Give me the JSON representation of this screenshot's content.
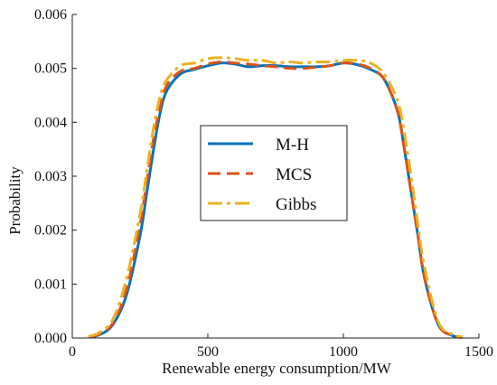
{
  "colors": {
    "mh": "#0072BD",
    "mcs": "#D95319",
    "gibbs": "#EDB120",
    "axis": "#222222",
    "background": "#ffffff"
  },
  "chart_data": {
    "type": "line",
    "title": "",
    "xlabel": "Renewable energy consumption/MW",
    "ylabel": "Probability",
    "xlim": [
      0,
      1500
    ],
    "ylim": [
      0,
      0.006
    ],
    "xticks": [
      0,
      500,
      1000,
      1500
    ],
    "xtick_labels": [
      "0",
      "500",
      "1000",
      "1500"
    ],
    "yticks": [
      0,
      0.001,
      0.002,
      0.003,
      0.004,
      0.005,
      0.006
    ],
    "ytick_labels": [
      "0.000",
      "0.001",
      "0.002",
      "0.003",
      "0.004",
      "0.005",
      "0.006"
    ],
    "grid": false,
    "legend_position": "center",
    "series": [
      {
        "name": "M-H",
        "style": "solid",
        "color": "#0072BD",
        "x": [
          60,
          100,
          150,
          200,
          250,
          275,
          300,
          325,
          350,
          400,
          450,
          500,
          550,
          600,
          650,
          700,
          750,
          800,
          850,
          900,
          950,
          1000,
          1050,
          1100,
          1150,
          1200,
          1225,
          1250,
          1275,
          1300,
          1350,
          1400,
          1440
        ],
        "y": [
          2e-05,
          6e-05,
          0.00025,
          0.0008,
          0.0019,
          0.0027,
          0.0035,
          0.0042,
          0.0046,
          0.0049,
          0.00498,
          0.00505,
          0.0051,
          0.00508,
          0.00503,
          0.00505,
          0.00505,
          0.00503,
          0.00503,
          0.00503,
          0.00505,
          0.0051,
          0.00507,
          0.00498,
          0.0048,
          0.0042,
          0.0035,
          0.0027,
          0.0019,
          0.0011,
          0.00025,
          5e-05,
          1e-05
        ]
      },
      {
        "name": "MCS",
        "style": "dashed",
        "color": "#D95319",
        "x": [
          60,
          100,
          150,
          200,
          250,
          275,
          300,
          325,
          350,
          400,
          450,
          500,
          550,
          600,
          650,
          700,
          750,
          800,
          850,
          900,
          950,
          1000,
          1050,
          1100,
          1150,
          1200,
          1225,
          1250,
          1275,
          1300,
          1350,
          1400,
          1440
        ],
        "y": [
          2e-05,
          7e-05,
          0.00028,
          0.0009,
          0.0021,
          0.0029,
          0.0037,
          0.0043,
          0.0047,
          0.00495,
          0.005,
          0.00508,
          0.00512,
          0.0051,
          0.00508,
          0.00505,
          0.00503,
          0.005,
          0.005,
          0.00502,
          0.00505,
          0.0051,
          0.00508,
          0.005,
          0.0048,
          0.0042,
          0.0035,
          0.0027,
          0.0019,
          0.0011,
          0.00025,
          5e-05,
          1e-05
        ]
      },
      {
        "name": "Gibbs",
        "style": "dashdot",
        "color": "#EDB120",
        "x": [
          60,
          100,
          150,
          200,
          250,
          275,
          300,
          325,
          350,
          400,
          450,
          500,
          550,
          600,
          650,
          700,
          750,
          800,
          850,
          900,
          950,
          1000,
          1050,
          1100,
          1150,
          1200,
          1225,
          1250,
          1275,
          1300,
          1350,
          1400,
          1440
        ],
        "y": [
          3e-05,
          0.0001,
          0.00035,
          0.0011,
          0.0023,
          0.0031,
          0.0039,
          0.0045,
          0.0048,
          0.00505,
          0.0051,
          0.00518,
          0.0052,
          0.00518,
          0.00515,
          0.00515,
          0.0051,
          0.00512,
          0.0051,
          0.00512,
          0.00512,
          0.00515,
          0.00515,
          0.0051,
          0.0049,
          0.0044,
          0.0038,
          0.003,
          0.0021,
          0.0013,
          0.0003,
          7e-05,
          2e-05
        ]
      }
    ]
  }
}
